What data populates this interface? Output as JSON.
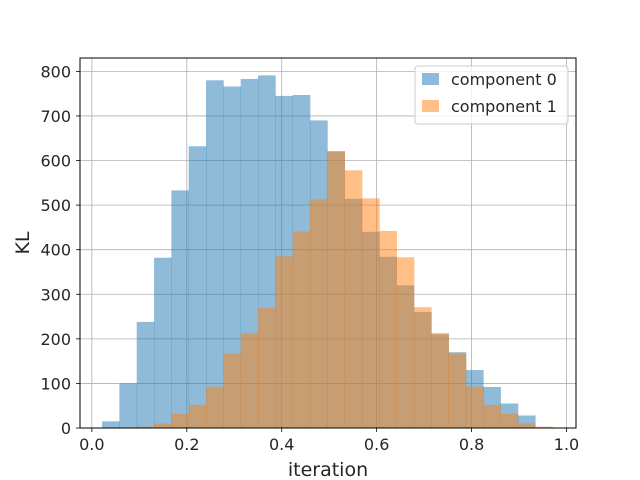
{
  "chart_data": {
    "type": "bar",
    "xlabel": "iteration",
    "ylabel": "KL",
    "xlim": [
      -0.025,
      1.02
    ],
    "ylim": [
      0,
      830
    ],
    "xticks": [
      0.0,
      0.2,
      0.4,
      0.6,
      0.8,
      1.0
    ],
    "xtick_labels": [
      "0.0",
      "0.2",
      "0.4",
      "0.6",
      "0.8",
      "1.0"
    ],
    "yticks": [
      0,
      100,
      200,
      300,
      400,
      500,
      600,
      700,
      800
    ],
    "ytick_labels": [
      "0",
      "100",
      "200",
      "300",
      "400",
      "500",
      "600",
      "700",
      "800"
    ],
    "grid": true,
    "legend_position": "top-right",
    "series": [
      {
        "name": "component 0",
        "color": "#1f77b4",
        "alpha": 0.5,
        "bin_edges": [
          0.0215,
          0.058,
          0.0945,
          0.131,
          0.1675,
          0.204,
          0.2405,
          0.277,
          0.3135,
          0.35,
          0.3865,
          0.423,
          0.4595,
          0.496,
          0.5325,
          0.569,
          0.6055,
          0.642,
          0.6785,
          0.715,
          0.7515,
          0.788,
          0.8245,
          0.861,
          0.8975,
          0.934
        ],
        "counts": [
          15,
          100,
          238,
          382,
          533,
          632,
          780,
          766,
          783,
          791,
          745,
          747,
          690,
          621,
          514,
          440,
          384,
          320,
          260,
          210,
          170,
          130,
          92,
          55,
          28
        ]
      },
      {
        "name": "component 1",
        "color": "#ff7f0e",
        "alpha": 0.5,
        "bin_edges": [
          0.058,
          0.0945,
          0.131,
          0.1675,
          0.204,
          0.2405,
          0.277,
          0.3135,
          0.35,
          0.3865,
          0.423,
          0.4595,
          0.496,
          0.5325,
          0.569,
          0.6055,
          0.642,
          0.6785,
          0.715,
          0.7515,
          0.788,
          0.8245,
          0.861,
          0.8975,
          0.934,
          0.9705
        ],
        "counts": [
          1,
          3,
          10,
          32,
          52,
          93,
          167,
          212,
          270,
          385,
          441,
          513,
          620,
          578,
          515,
          442,
          383,
          271,
          213,
          167,
          93,
          52,
          32,
          10,
          3
        ]
      }
    ]
  }
}
